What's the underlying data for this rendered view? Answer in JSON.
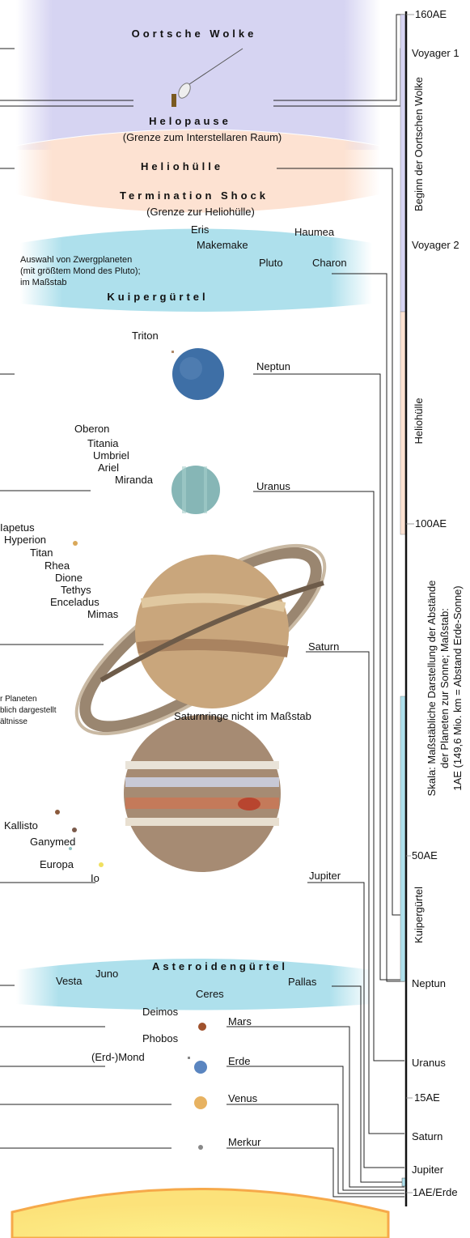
{
  "oort": {
    "title": "Oortsche Wolke"
  },
  "heliopause": {
    "title": "Helopause",
    "subtitle": "(Grenze zum Interstellaren Raum)"
  },
  "heliosheath": {
    "title": "Heliohülle"
  },
  "termination_shock": {
    "title": "Termination Shock",
    "subtitle": "(Grenze zur Heliohülle)"
  },
  "kuiper": {
    "note": [
      "Auswahl von Zwergplaneten",
      "(mit größtem Mond des Pluto);",
      "im Maßstab"
    ],
    "title": "Kuipergürtel",
    "objects": [
      "Eris",
      "Makemake",
      "Haumea",
      "Pluto",
      "Charon"
    ]
  },
  "neptune": {
    "moons": [
      "Triton"
    ],
    "name": "Neptun"
  },
  "uranus": {
    "moons": [
      "Oberon",
      "Titania",
      "Umbriel",
      "Ariel",
      "Miranda"
    ],
    "name": "Uranus"
  },
  "saturn": {
    "moons": [
      "Iapetus",
      "Hyperion",
      "Titan",
      "Rhea",
      "Dione",
      "Tethys",
      "Enceladus",
      "Mimas"
    ],
    "name": "Saturn",
    "note": "Saturnringe nicht im Maßstab"
  },
  "left_note": [
    "r Planeten",
    "blich dargestellt",
    "ältnisse"
  ],
  "jupiter": {
    "moons": [
      "Kallisto",
      "Ganymed",
      "Europa",
      "Io"
    ],
    "name": "Jupiter"
  },
  "asteroids": {
    "title": "Asteroidengürtel",
    "objects": [
      "Vesta",
      "Juno",
      "Ceres",
      "Pallas"
    ]
  },
  "inner": {
    "mars_moons": [
      "Deimos",
      "Phobos"
    ],
    "moon": "(Erd-)Mond",
    "planets": [
      "Mars",
      "Erde",
      "Venus",
      "Merkur"
    ]
  },
  "scale": {
    "labels": [
      "160AE",
      "Voyager 1",
      "Voyager 2",
      "100AE",
      "50AE",
      "Neptun",
      "Uranus",
      "15AE",
      "Saturn",
      "Jupiter",
      "1AE/Erde"
    ],
    "regions": [
      "Beginn der Oortschen Wolke",
      "Heliohülle",
      "Kuipergürtel"
    ],
    "caption": [
      "Skala: Maßstäbliche Darstellung der Abstände",
      "der Planeten zur Sonne; Maßstab:",
      "1AE (149,6 Mio. km = Abstand Erde-Sonne)"
    ]
  }
}
